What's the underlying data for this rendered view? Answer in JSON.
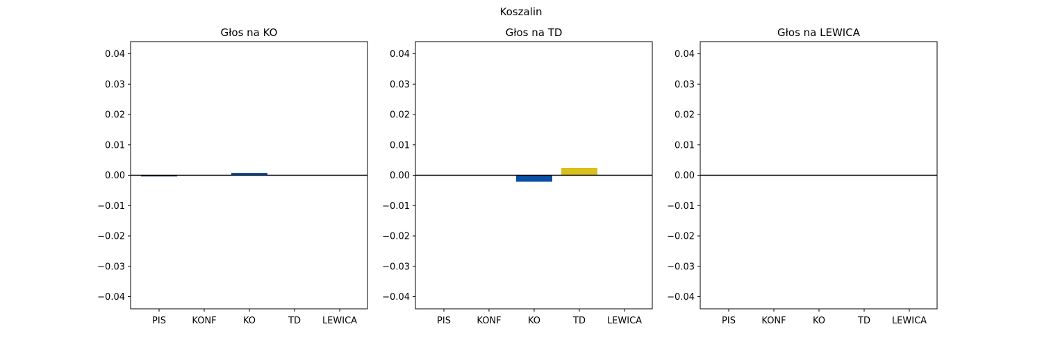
{
  "figure": {
    "title": "Koszalin"
  },
  "chart_data": [
    {
      "type": "bar",
      "title": "Głos na KO",
      "categories": [
        "PIS",
        "KONF",
        "KO",
        "TD",
        "LEWICA"
      ],
      "values": [
        -0.0004,
        0.0,
        0.0008,
        0.0,
        0.0
      ],
      "colors": [
        "#0f2c5c",
        "#2c2c2c",
        "#0a4fa6",
        "#d9c01a",
        "#c8102e"
      ],
      "ylim": [
        -0.044,
        0.044
      ],
      "yticks": [
        0.04,
        0.03,
        0.02,
        0.01,
        0.0,
        -0.01,
        -0.02,
        -0.03,
        -0.04
      ],
      "ytick_labels": [
        "0.04",
        "0.03",
        "0.02",
        "0.01",
        "0.00",
        "−0.01",
        "−0.02",
        "−0.03",
        "−0.04"
      ],
      "zero_line": true,
      "grid": false
    },
    {
      "type": "bar",
      "title": "Głos na TD",
      "categories": [
        "PIS",
        "KONF",
        "KO",
        "TD",
        "LEWICA"
      ],
      "values": [
        0.0,
        0.0,
        -0.0021,
        0.0024,
        0.0
      ],
      "colors": [
        "#0f2c5c",
        "#2c2c2c",
        "#0a4fa6",
        "#d9c01a",
        "#c8102e"
      ],
      "ylim": [
        -0.044,
        0.044
      ],
      "yticks": [
        0.04,
        0.03,
        0.02,
        0.01,
        0.0,
        -0.01,
        -0.02,
        -0.03,
        -0.04
      ],
      "ytick_labels": [
        "0.04",
        "0.03",
        "0.02",
        "0.01",
        "0.00",
        "−0.01",
        "−0.02",
        "−0.03",
        "−0.04"
      ],
      "zero_line": true,
      "grid": false
    },
    {
      "type": "bar",
      "title": "Głos na LEWICA",
      "categories": [
        "PIS",
        "KONF",
        "KO",
        "TD",
        "LEWICA"
      ],
      "values": [
        0.0,
        0.0,
        0.0,
        0.0,
        0.0
      ],
      "colors": [
        "#0f2c5c",
        "#2c2c2c",
        "#0a4fa6",
        "#d9c01a",
        "#c8102e"
      ],
      "ylim": [
        -0.044,
        0.044
      ],
      "yticks": [
        0.04,
        0.03,
        0.02,
        0.01,
        0.0,
        -0.01,
        -0.02,
        -0.03,
        -0.04
      ],
      "ytick_labels": [
        "0.04",
        "0.03",
        "0.02",
        "0.01",
        "0.00",
        "−0.01",
        "−0.02",
        "−0.03",
        "−0.04"
      ],
      "zero_line": true,
      "grid": false
    }
  ]
}
